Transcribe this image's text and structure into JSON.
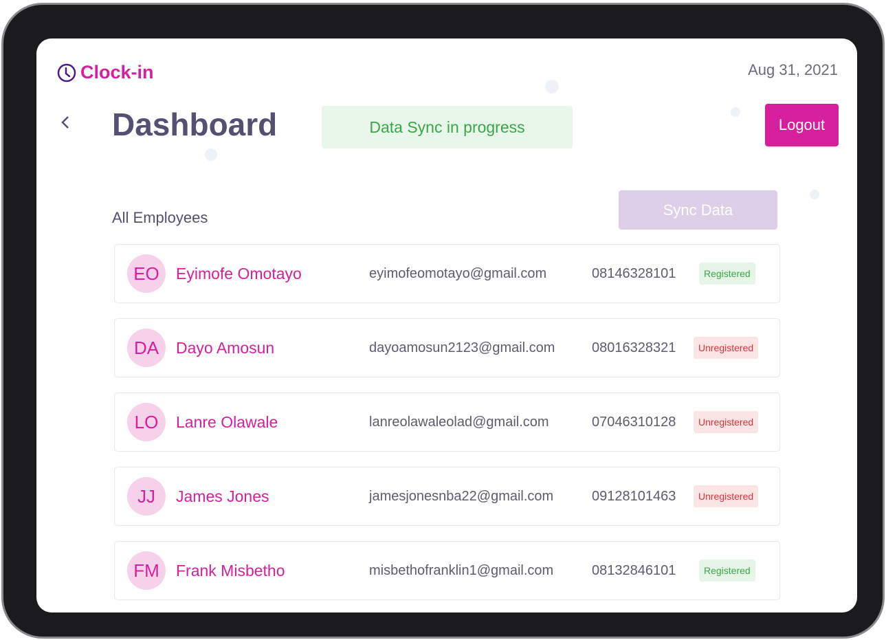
{
  "app": {
    "name": "Clock-in",
    "date": "Aug 31, 2021"
  },
  "header": {
    "title": "Dashboard",
    "sync_status": "Data Sync in progress",
    "logout_label": "Logout"
  },
  "section": {
    "title": "All Employees",
    "sync_label": "Sync Data"
  },
  "colors": {
    "accent": "#d61f9c",
    "registered": "#3aa748",
    "unregistered": "#d9343a"
  },
  "employees": [
    {
      "initials": "EO",
      "name": "Eyimofe Omotayo",
      "email": "eyimofeomotayo@gmail.com",
      "phone": "08146328101",
      "status": "Registered"
    },
    {
      "initials": "DA",
      "name": "Dayo Amosun",
      "email": "dayoamosun2123@gmail.com",
      "phone": "08016328321",
      "status": "Unregistered"
    },
    {
      "initials": "LO",
      "name": "Lanre Olawale",
      "email": "lanreolawaleolad@gmail.com",
      "phone": "07046310128",
      "status": "Unregistered"
    },
    {
      "initials": "JJ",
      "name": "James Jones",
      "email": "jamesjonesnba22@gmail.com",
      "phone": "09128101463",
      "status": "Unregistered"
    },
    {
      "initials": "FM",
      "name": "Frank Misbetho",
      "email": "misbethofranklin1@gmail.com",
      "phone": "08132846101",
      "status": "Registered"
    }
  ]
}
